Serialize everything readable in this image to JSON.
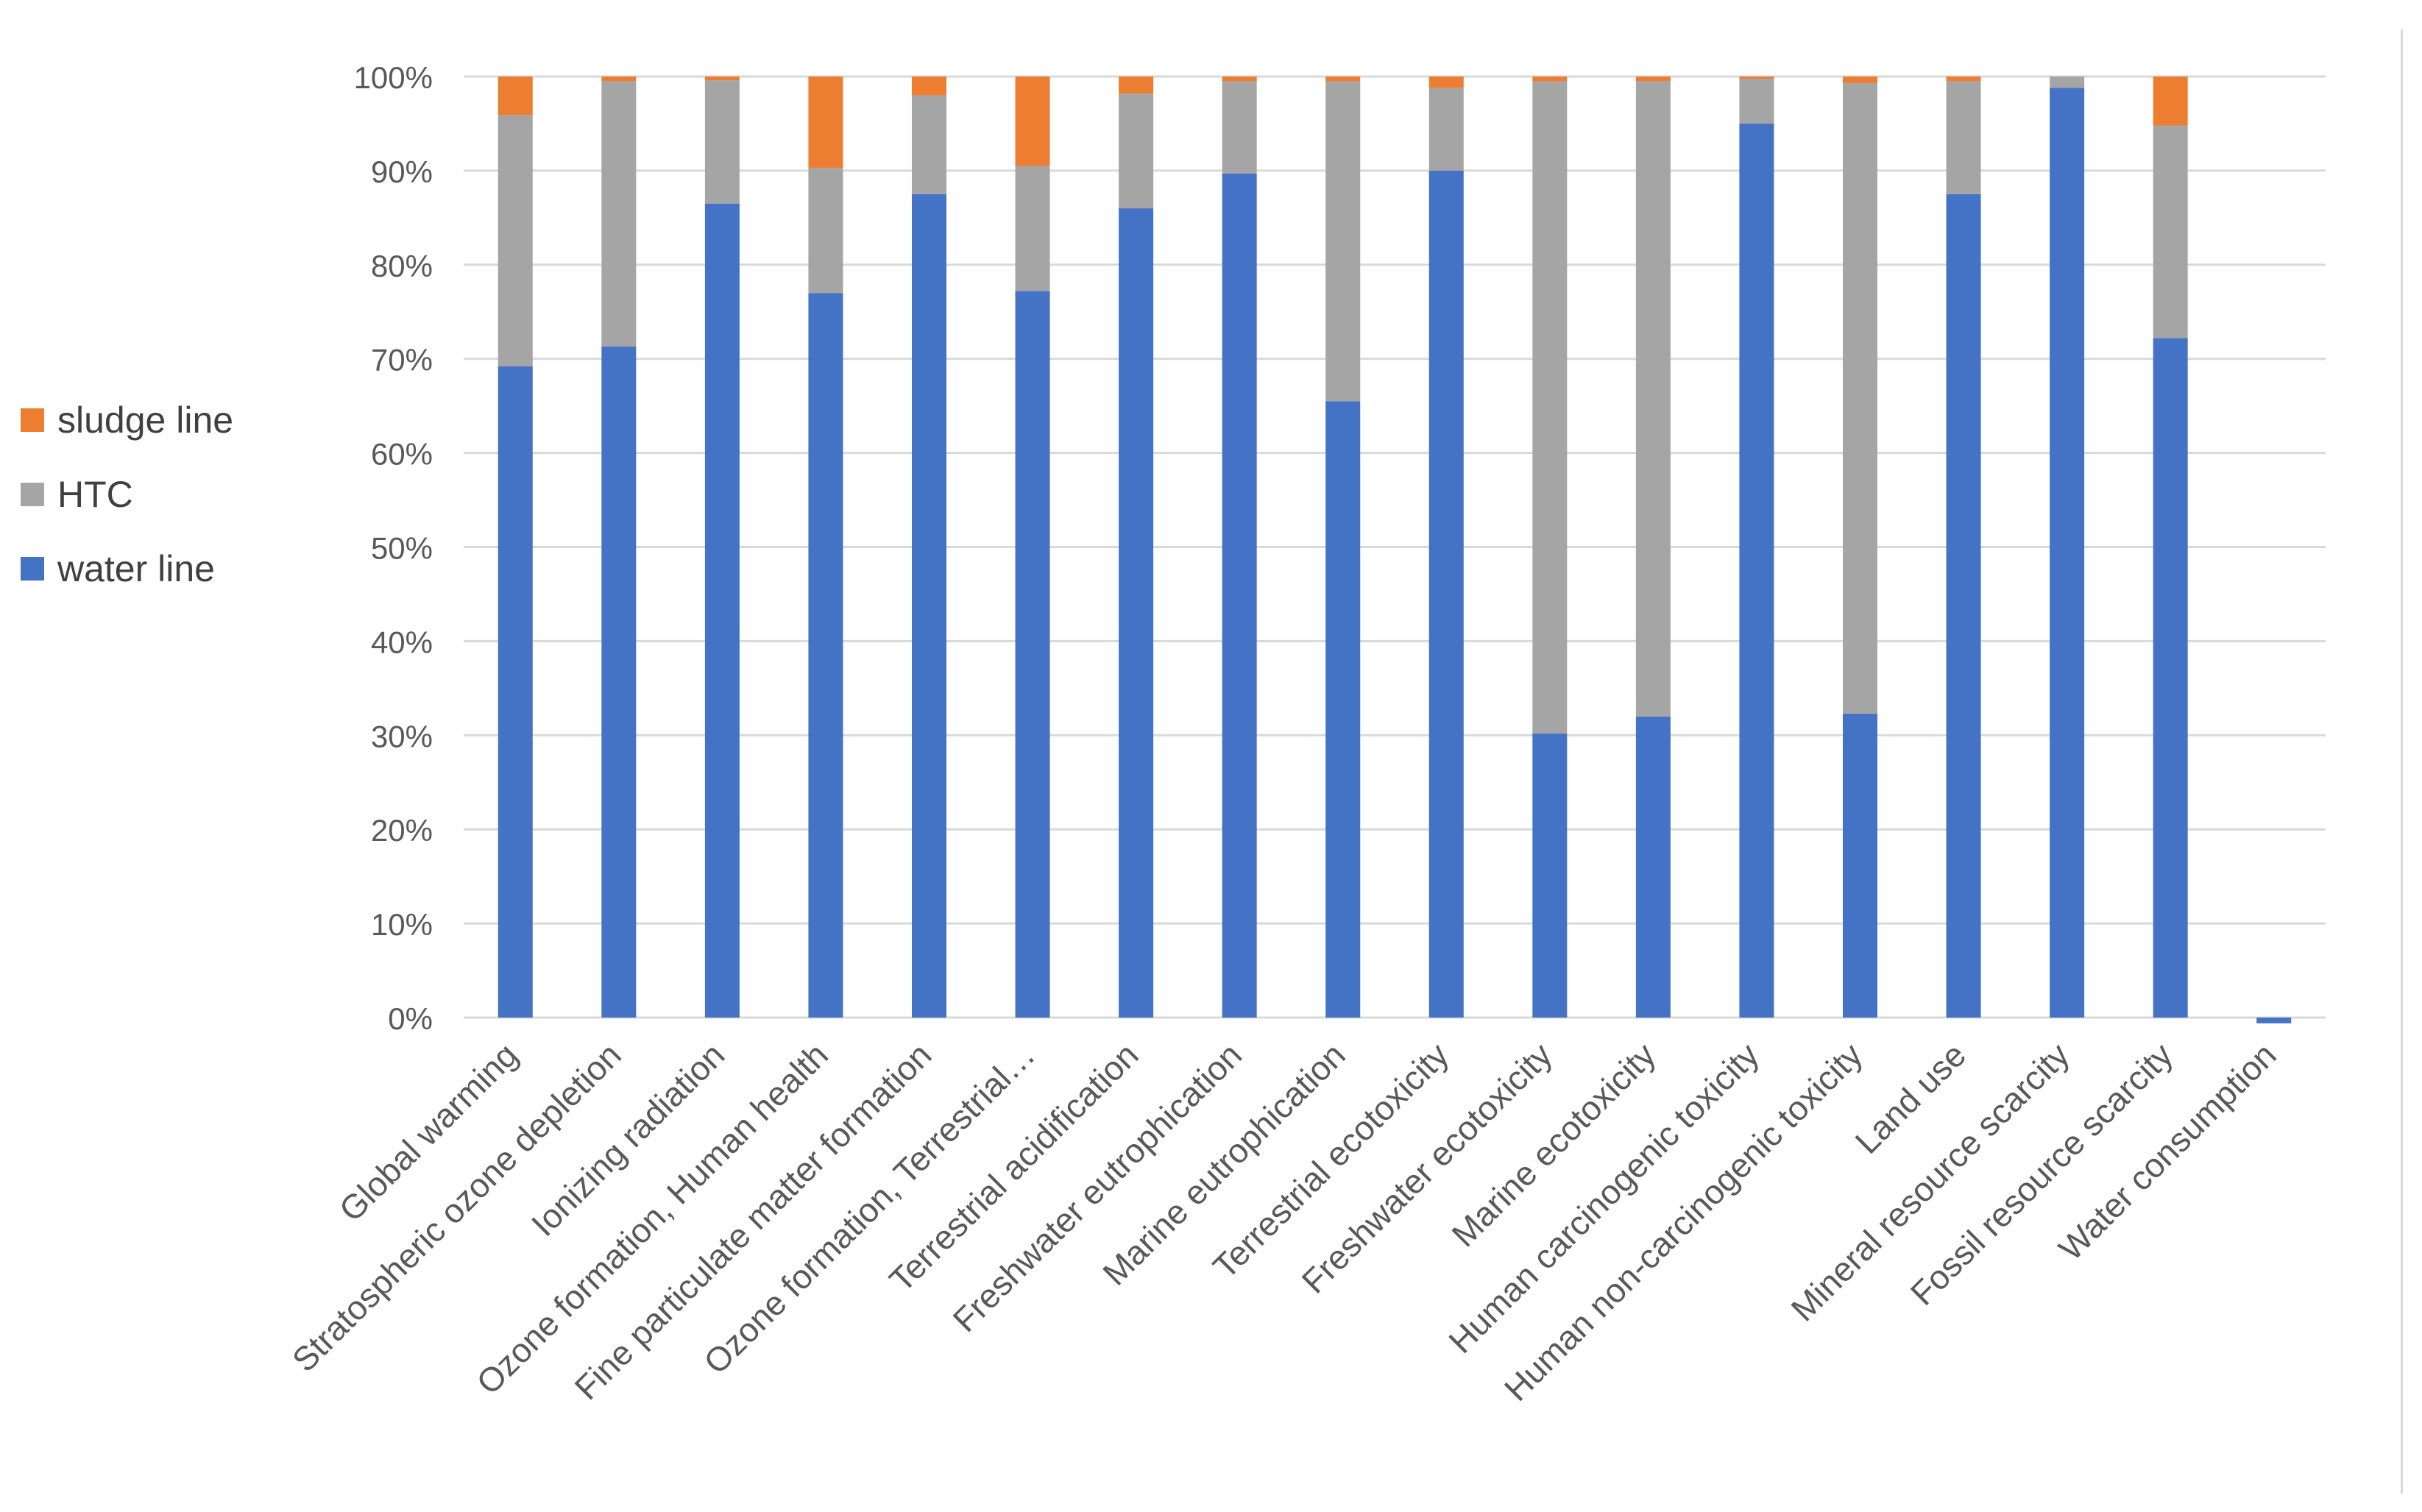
{
  "chart_data": {
    "type": "bar",
    "stacked": true,
    "percent": true,
    "title": "",
    "xlabel": "",
    "ylabel": "",
    "ylim": [
      0,
      100
    ],
    "yticks": [
      "0%",
      "10%",
      "20%",
      "30%",
      "40%",
      "50%",
      "60%",
      "70%",
      "80%",
      "90%",
      "100%"
    ],
    "categories": [
      "Global warming",
      "Stratospheric ozone depletion",
      "Ionizing radiation",
      "Ozone formation, Human health",
      "Fine particulate matter formation",
      "Ozone formation, Terrestrial…",
      "Terrestrial acidification",
      "Freshwater eutrophication",
      "Marine eutrophication",
      "Terrestrial ecotoxicity",
      "Freshwater ecotoxicity",
      "Marine ecotoxicity",
      "Human carcinogenic toxicity",
      "Human non-carcinogenic toxicity",
      "Land use",
      "Mineral resource scarcity",
      "Fossil resource scarcity",
      "Water consumption"
    ],
    "series": [
      {
        "name": "water line",
        "color": "#4472C4",
        "values": [
          69.2,
          71.3,
          86.5,
          77.0,
          87.5,
          77.2,
          86.0,
          89.7,
          65.5,
          90.0,
          30.2,
          32.0,
          95.0,
          32.3,
          87.5,
          98.8,
          72.2,
          -0.3
        ]
      },
      {
        "name": "HTC",
        "color": "#A5A5A5",
        "values": [
          26.7,
          28.2,
          13.1,
          13.3,
          10.5,
          13.3,
          12.2,
          9.8,
          34.0,
          8.8,
          69.3,
          67.5,
          4.8,
          67.0,
          12.0,
          1.2,
          22.6,
          0
        ]
      },
      {
        "name": "sludge line",
        "color": "#ED7D31",
        "values": [
          4.1,
          0.5,
          0.4,
          9.7,
          2.0,
          9.5,
          1.8,
          0.5,
          0.5,
          1.2,
          0.5,
          0.5,
          0.2,
          0.7,
          0.5,
          0.0,
          5.2,
          0
        ]
      }
    ],
    "legend": {
      "position": "left",
      "order": [
        "sludge line",
        "HTC",
        "water line"
      ]
    },
    "grid": true
  }
}
